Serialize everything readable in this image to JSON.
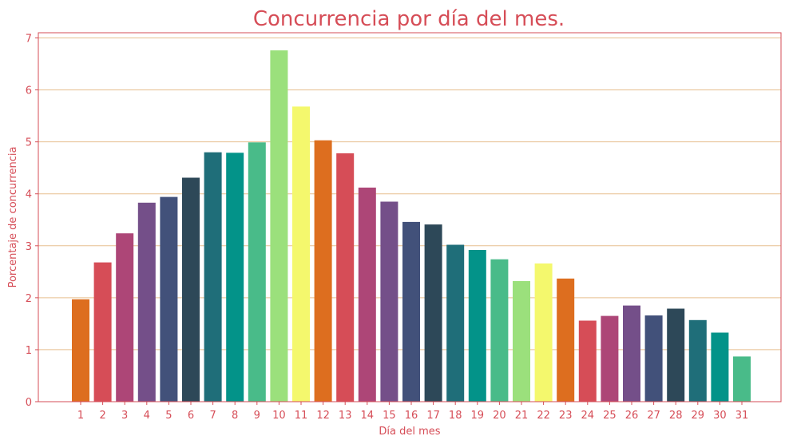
{
  "chart_data": {
    "type": "bar",
    "title": "Concurrencia por día del mes.",
    "xlabel": "Día del mes",
    "ylabel": "Porcentaje de concurrencia",
    "ylim": [
      0,
      7.1
    ],
    "yticks": [
      0,
      1,
      2,
      3,
      4,
      5,
      6,
      7
    ],
    "grid": "horizontal",
    "legend": "none",
    "categories": [
      "1",
      "2",
      "3",
      "4",
      "5",
      "6",
      "7",
      "8",
      "9",
      "10",
      "11",
      "12",
      "13",
      "14",
      "15",
      "16",
      "17",
      "18",
      "19",
      "20",
      "21",
      "22",
      "23",
      "24",
      "25",
      "26",
      "27",
      "28",
      "29",
      "30",
      "31"
    ],
    "values": [
      1.97,
      2.68,
      3.24,
      3.83,
      3.94,
      4.31,
      4.8,
      4.79,
      4.99,
      6.76,
      5.68,
      5.03,
      4.78,
      4.12,
      3.85,
      3.46,
      3.41,
      3.02,
      2.92,
      2.74,
      2.32,
      2.66,
      2.37,
      1.56,
      1.65,
      1.85,
      1.66,
      1.79,
      1.57,
      1.33,
      0.87
    ],
    "colors": [
      "#dd6e1f",
      "#d64d57",
      "#ad4677",
      "#744f89",
      "#42517a",
      "#2d4858",
      "#1f6e79",
      "#039389",
      "#49bb89",
      "#9be07c",
      "#f4f86d"
    ],
    "text_color": "#d64d57",
    "grid_color": "#e7bf8f",
    "frame_color": "#d64d57"
  }
}
